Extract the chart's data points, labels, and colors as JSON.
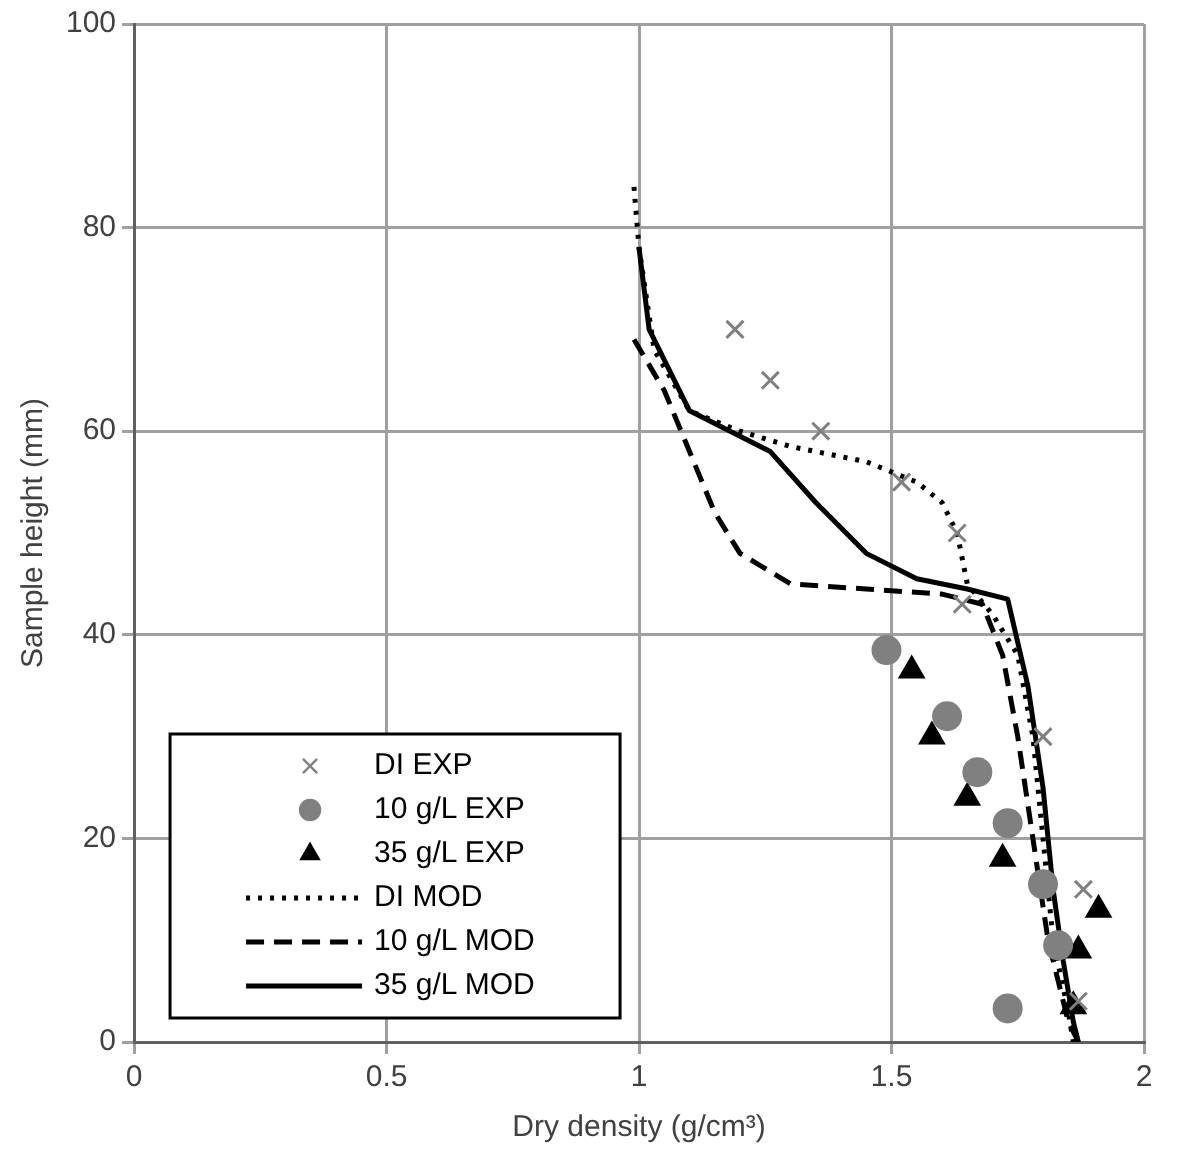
{
  "chart_data": {
    "type": "scatter",
    "xlabel": "Dry density (g/cm³)",
    "ylabel": "Sample height (mm)",
    "xlim": [
      0,
      2
    ],
    "xticks": [
      0,
      0.5,
      1,
      1.5,
      2
    ],
    "ylim": [
      0,
      100
    ],
    "yticks": [
      0,
      20,
      40,
      60,
      80,
      100
    ],
    "grid": true,
    "legend": "bottom left",
    "series": [
      {
        "name": "DI EXP",
        "type": "scatter",
        "marker": "cross",
        "color": "#808080",
        "x": [
          1.19,
          1.26,
          1.36,
          1.52,
          1.63,
          1.64,
          1.8,
          1.88,
          1.87
        ],
        "values": [
          70,
          65,
          60,
          55,
          50,
          43,
          30,
          15,
          4
        ]
      },
      {
        "name": "10 g/L EXP",
        "type": "scatter",
        "marker": "circle",
        "color": "#808080",
        "x": [
          1.49,
          1.61,
          1.67,
          1.73,
          1.8,
          1.83,
          1.73
        ],
        "values": [
          38.5,
          32,
          26.5,
          21.5,
          15.5,
          9.5,
          3.3
        ]
      },
      {
        "name": "35 g/L EXP",
        "type": "scatter",
        "marker": "triangle",
        "color": "#000000",
        "x": [
          1.54,
          1.58,
          1.65,
          1.72,
          1.91,
          1.87,
          1.86
        ],
        "values": [
          36.5,
          30,
          24,
          18,
          13,
          9,
          3.5
        ]
      },
      {
        "name": "DI MOD",
        "type": "line",
        "marker": "none",
        "line_style": "dotted",
        "color": "#000000",
        "x": [
          0.99,
          1.0,
          1.03,
          1.1,
          1.2,
          1.3,
          1.45,
          1.55,
          1.6,
          1.63,
          1.65,
          1.7,
          1.75,
          1.78,
          1.8,
          1.82,
          1.85,
          1.86
        ],
        "values": [
          84,
          78,
          68,
          62,
          60,
          58.5,
          57,
          55,
          53,
          50,
          45,
          42,
          38,
          30,
          20,
          10,
          3,
          0
        ]
      },
      {
        "name": "10 g/L MOD",
        "type": "line",
        "marker": "none",
        "line_style": "dashed",
        "color": "#000000",
        "x": [
          0.99,
          1.05,
          1.1,
          1.15,
          1.2,
          1.3,
          1.45,
          1.6,
          1.68,
          1.72,
          1.75,
          1.78,
          1.81,
          1.85,
          1.87
        ],
        "values": [
          69,
          64,
          58,
          52,
          48,
          45,
          44.5,
          44,
          43,
          38,
          30,
          20,
          10,
          2,
          0
        ]
      },
      {
        "name": "35 g/L MOD",
        "type": "line",
        "marker": "none",
        "line_style": "solid",
        "color": "#000000",
        "x": [
          1.0,
          1.02,
          1.1,
          1.2,
          1.26,
          1.35,
          1.45,
          1.55,
          1.65,
          1.73,
          1.77,
          1.8,
          1.82,
          1.84,
          1.86,
          1.87
        ],
        "values": [
          78,
          70,
          62,
          59.5,
          58,
          53,
          48,
          45.5,
          44.5,
          43.5,
          35,
          25,
          15,
          8,
          2,
          0
        ]
      }
    ]
  }
}
